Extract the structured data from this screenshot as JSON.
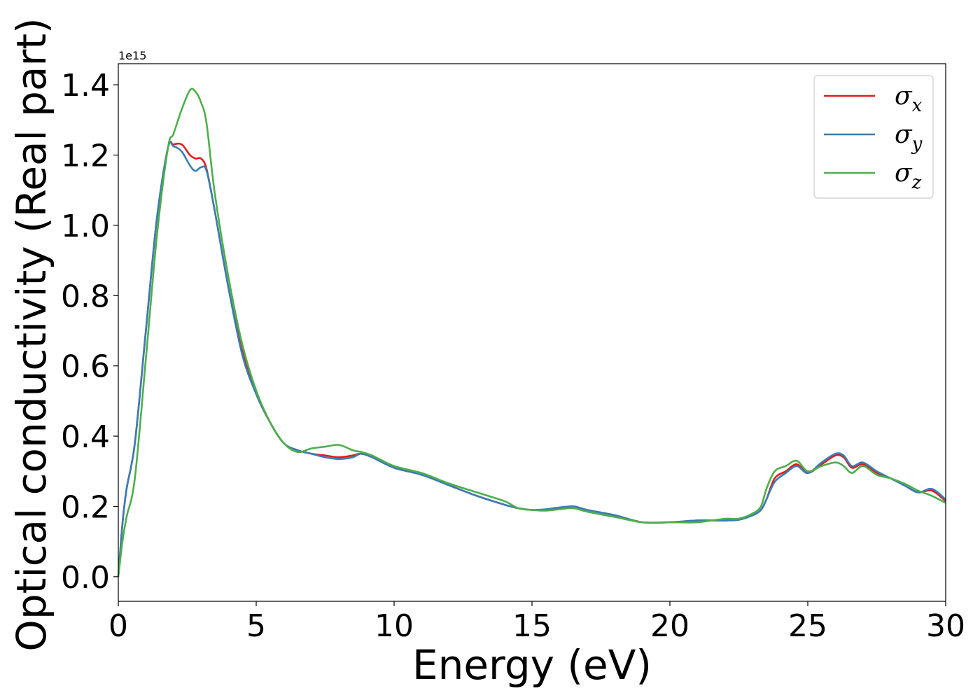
{
  "chart_data": {
    "type": "line",
    "title": "",
    "xlabel": "Energy (eV)",
    "ylabel": "Optical conductivity (Real part)",
    "y_offset_label": "1e15",
    "xlim": [
      0,
      30
    ],
    "ylim": [
      -0.07,
      1.46
    ],
    "y_unit_scale": 1000000000000000.0,
    "xticks": [
      0,
      5,
      10,
      15,
      20,
      25,
      30
    ],
    "xtick_labels": [
      "0",
      "5",
      "10",
      "15",
      "20",
      "25",
      "30"
    ],
    "yticks": [
      0.0,
      0.2,
      0.4,
      0.6,
      0.8,
      1.0,
      1.2,
      1.4
    ],
    "ytick_labels": [
      "0.0",
      "0.2",
      "0.4",
      "0.6",
      "0.8",
      "1.0",
      "1.2",
      "1.4"
    ],
    "grid": false,
    "legend_position": "top-right",
    "series": [
      {
        "name": "σx",
        "legend_main": "σ",
        "legend_sub": "x",
        "color": "#e41a1c",
        "x": [
          0,
          0.15,
          0.3,
          0.6,
          1.0,
          1.4,
          1.8,
          2.0,
          2.3,
          2.6,
          2.8,
          3.0,
          3.2,
          3.5,
          4.0,
          4.5,
          5.0,
          5.5,
          6.0,
          6.5,
          7.0,
          7.5,
          8.0,
          8.5,
          8.8,
          9.2,
          10.0,
          11.0,
          12.0,
          13.0,
          14.0,
          14.5,
          15.0,
          15.5,
          16.0,
          16.5,
          17.0,
          18.0,
          19.0,
          20.0,
          21.0,
          22.0,
          22.5,
          23.0,
          23.3,
          23.5,
          23.8,
          24.2,
          24.6,
          25.0,
          25.5,
          26.0,
          26.3,
          26.6,
          27.0,
          27.5,
          28.0,
          28.5,
          29.0,
          29.5,
          30.0
        ],
        "y": [
          0.0,
          0.15,
          0.25,
          0.38,
          0.7,
          1.02,
          1.22,
          1.23,
          1.23,
          1.2,
          1.19,
          1.19,
          1.16,
          1.04,
          0.82,
          0.64,
          0.52,
          0.44,
          0.38,
          0.36,
          0.35,
          0.345,
          0.34,
          0.345,
          0.35,
          0.34,
          0.31,
          0.29,
          0.26,
          0.23,
          0.205,
          0.195,
          0.19,
          0.19,
          0.195,
          0.2,
          0.19,
          0.175,
          0.155,
          0.155,
          0.16,
          0.16,
          0.165,
          0.175,
          0.19,
          0.22,
          0.28,
          0.3,
          0.32,
          0.295,
          0.32,
          0.345,
          0.34,
          0.31,
          0.32,
          0.295,
          0.28,
          0.26,
          0.24,
          0.245,
          0.215
        ]
      },
      {
        "name": "σy",
        "legend_main": "σ",
        "legend_sub": "y",
        "color": "#377eb8",
        "x": [
          0,
          0.15,
          0.3,
          0.6,
          1.0,
          1.4,
          1.8,
          2.0,
          2.3,
          2.6,
          2.8,
          3.0,
          3.2,
          3.5,
          4.0,
          4.5,
          5.0,
          5.5,
          6.0,
          6.5,
          7.0,
          7.5,
          8.0,
          8.5,
          8.8,
          9.2,
          10.0,
          11.0,
          12.0,
          13.0,
          14.0,
          14.5,
          15.0,
          15.5,
          16.0,
          16.5,
          17.0,
          18.0,
          19.0,
          20.0,
          21.0,
          22.0,
          22.5,
          23.0,
          23.3,
          23.5,
          23.8,
          24.2,
          24.6,
          25.0,
          25.5,
          26.0,
          26.3,
          26.6,
          27.0,
          27.5,
          28.0,
          28.5,
          29.0,
          29.5,
          30.0
        ],
        "y": [
          0.0,
          0.15,
          0.25,
          0.38,
          0.7,
          1.02,
          1.22,
          1.225,
          1.21,
          1.17,
          1.155,
          1.165,
          1.155,
          1.04,
          0.82,
          0.63,
          0.52,
          0.44,
          0.38,
          0.36,
          0.35,
          0.34,
          0.335,
          0.34,
          0.35,
          0.34,
          0.31,
          0.29,
          0.26,
          0.23,
          0.205,
          0.195,
          0.19,
          0.192,
          0.197,
          0.2,
          0.19,
          0.175,
          0.155,
          0.155,
          0.16,
          0.16,
          0.162,
          0.175,
          0.19,
          0.22,
          0.27,
          0.295,
          0.315,
          0.295,
          0.325,
          0.35,
          0.345,
          0.315,
          0.325,
          0.3,
          0.28,
          0.26,
          0.24,
          0.25,
          0.22
        ]
      },
      {
        "name": "σz",
        "legend_main": "σ",
        "legend_sub": "z",
        "color": "#4daf4a",
        "x": [
          0,
          0.15,
          0.3,
          0.6,
          1.0,
          1.4,
          1.8,
          2.0,
          2.3,
          2.6,
          2.8,
          3.0,
          3.2,
          3.5,
          4.0,
          4.5,
          5.0,
          5.5,
          6.0,
          6.5,
          7.0,
          7.5,
          8.0,
          8.5,
          8.8,
          9.2,
          10.0,
          11.0,
          12.0,
          13.0,
          14.0,
          14.5,
          15.0,
          15.5,
          16.0,
          16.5,
          17.0,
          18.0,
          19.0,
          20.0,
          21.0,
          22.0,
          22.5,
          23.0,
          23.3,
          23.5,
          23.8,
          24.2,
          24.6,
          25.0,
          25.5,
          26.0,
          26.3,
          26.6,
          27.0,
          27.5,
          28.0,
          28.5,
          29.0,
          29.5,
          30.0
        ],
        "y": [
          0.0,
          0.1,
          0.17,
          0.28,
          0.62,
          0.97,
          1.22,
          1.26,
          1.33,
          1.385,
          1.38,
          1.35,
          1.29,
          1.09,
          0.85,
          0.66,
          0.53,
          0.44,
          0.38,
          0.355,
          0.365,
          0.37,
          0.375,
          0.36,
          0.355,
          0.345,
          0.315,
          0.295,
          0.265,
          0.24,
          0.215,
          0.195,
          0.19,
          0.188,
          0.192,
          0.195,
          0.185,
          0.17,
          0.155,
          0.155,
          0.155,
          0.165,
          0.165,
          0.18,
          0.2,
          0.25,
          0.3,
          0.315,
          0.33,
          0.3,
          0.315,
          0.325,
          0.315,
          0.295,
          0.315,
          0.29,
          0.28,
          0.265,
          0.245,
          0.23,
          0.21
        ]
      }
    ]
  }
}
